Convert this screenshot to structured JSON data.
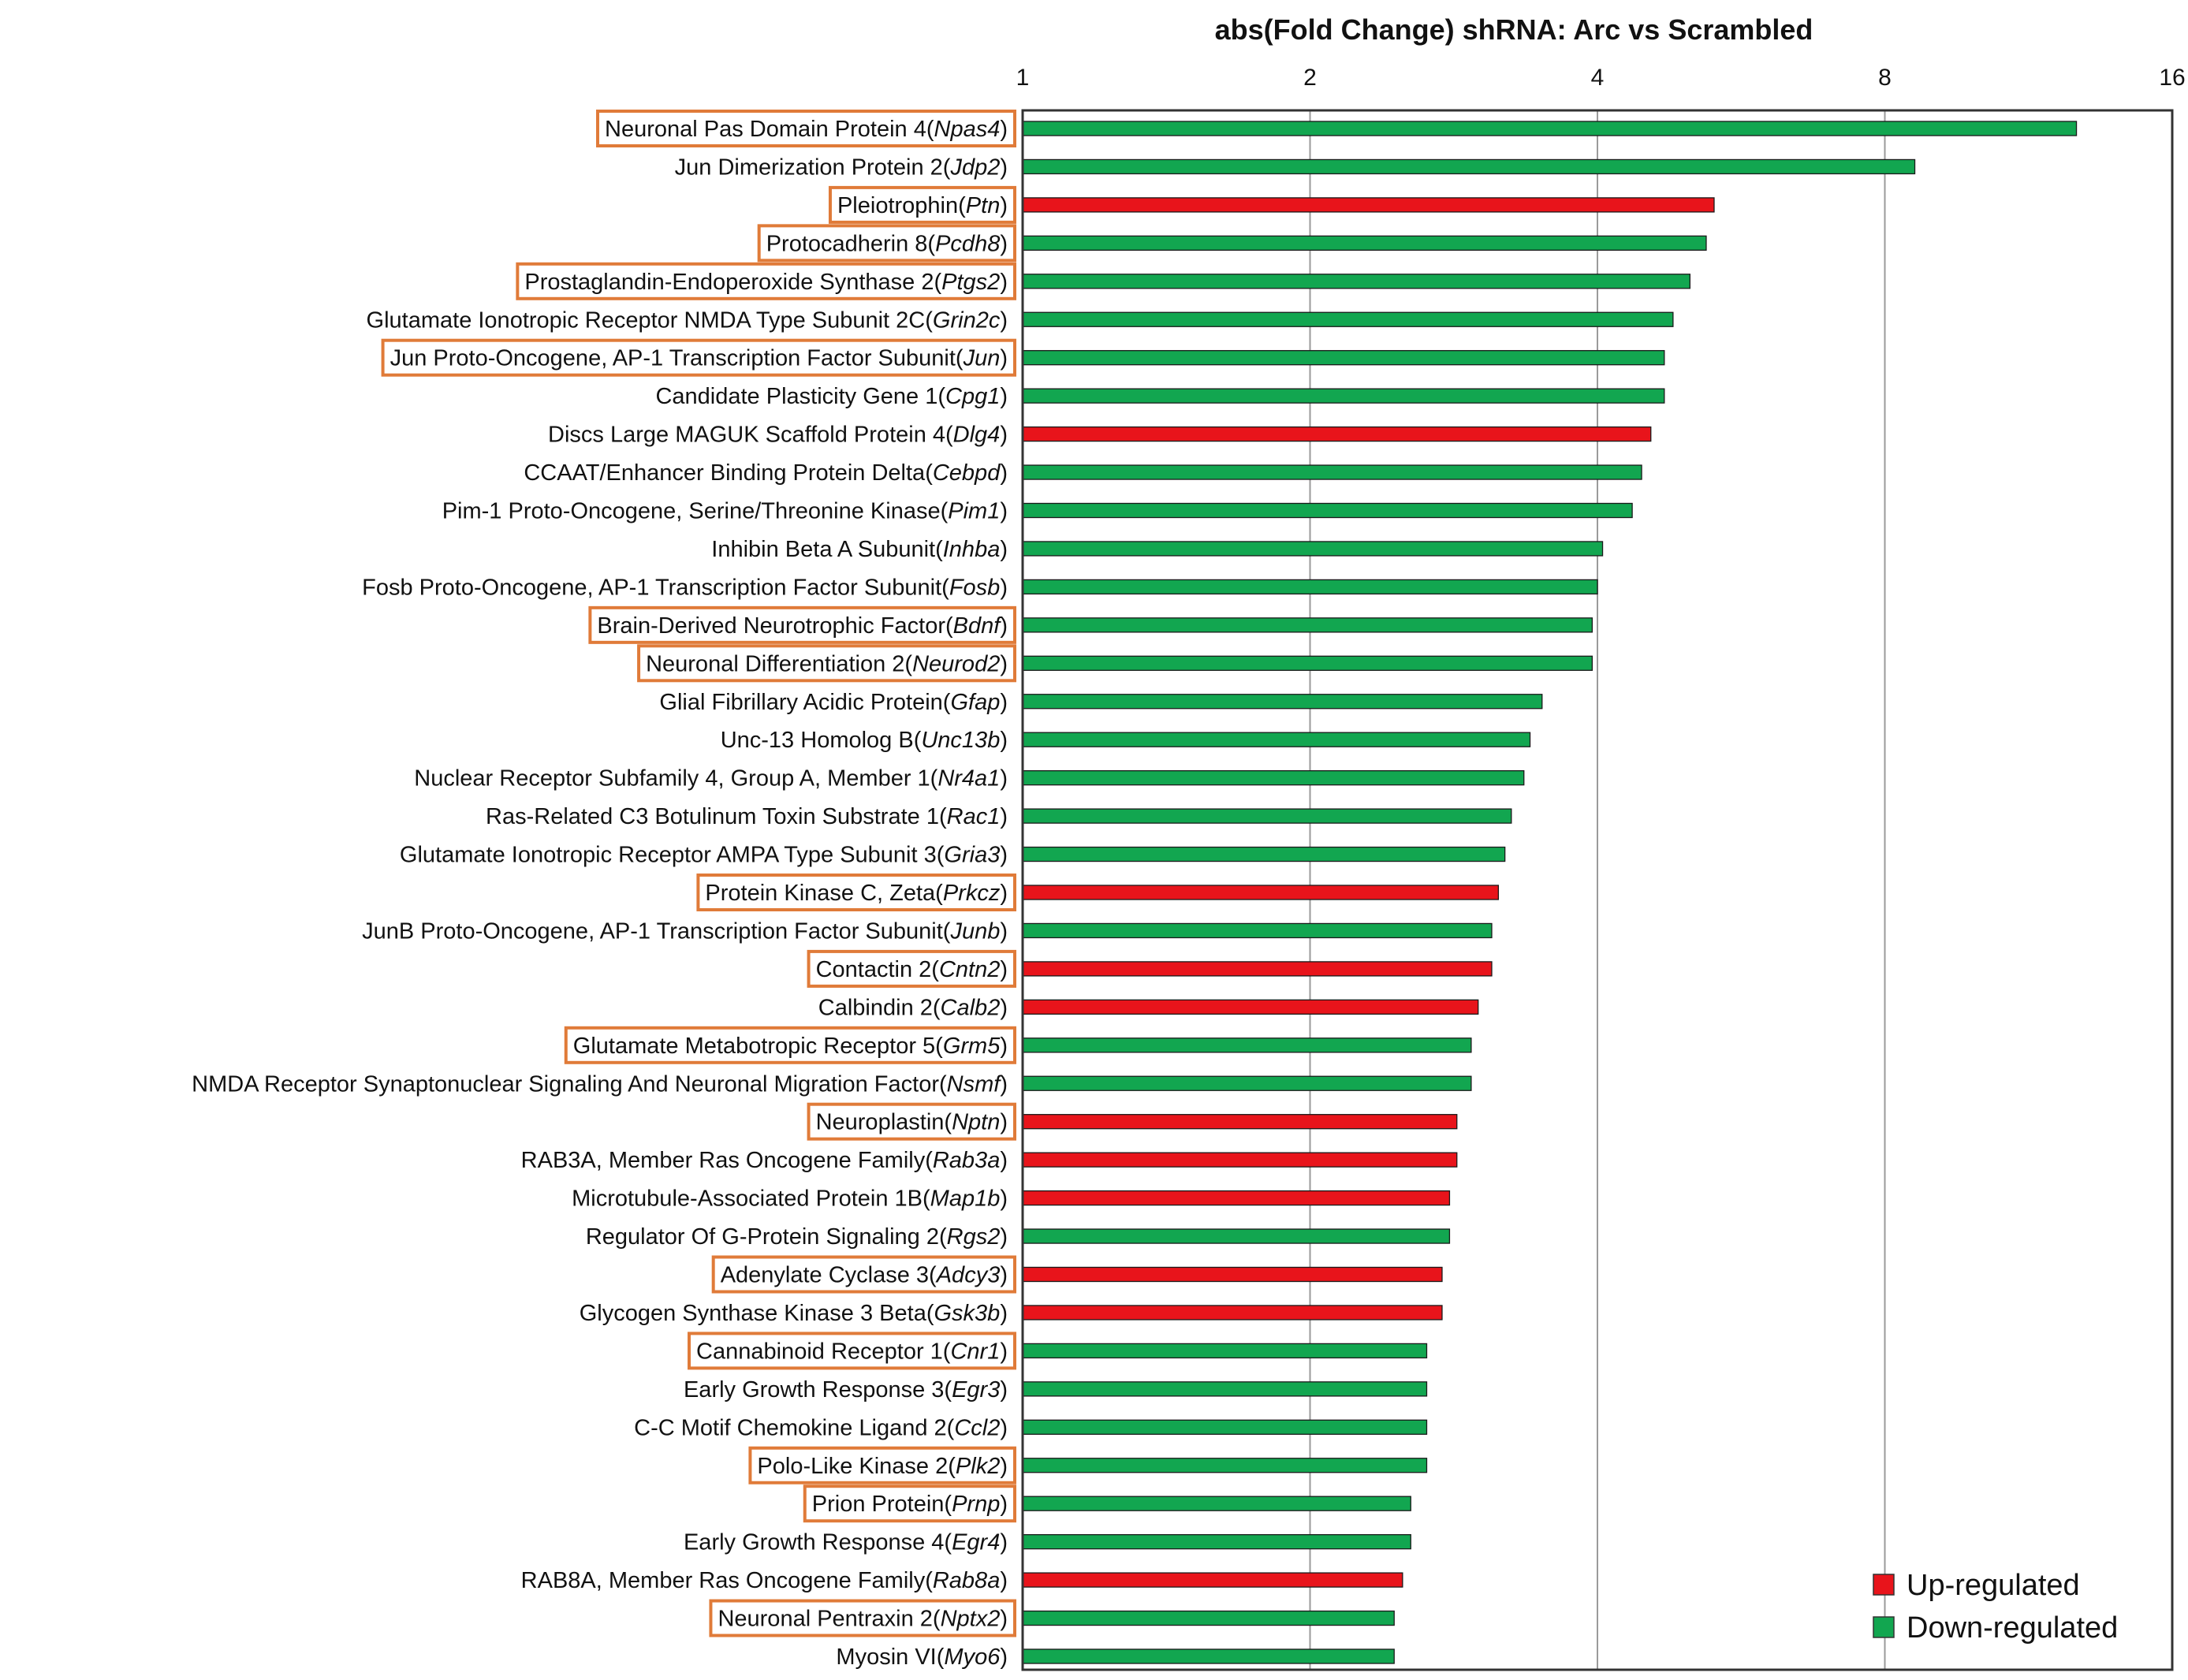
{
  "chart_data": {
    "type": "bar",
    "orientation": "horizontal",
    "title": "abs(Fold Change) shRNA: Arc vs Scrambled",
    "xscale": "log2",
    "xlim": [
      1,
      16
    ],
    "xticks": [
      "1",
      "2",
      "4",
      "8",
      "16"
    ],
    "grid": true,
    "legend_position": "bottom-right",
    "legend": [
      {
        "label": "Up-regulated",
        "color": "#e8141b"
      },
      {
        "label": "Down-regulated",
        "color": "#12a650"
      }
    ],
    "colors": {
      "up": "#e8141b",
      "down": "#12a650",
      "highlight": "#e07b39"
    },
    "genes": [
      {
        "name": "Neuronal Pas Domain Protein 4(",
        "symbol": "Npas4",
        "suffix": ")",
        "value": 12.7,
        "direction": "down",
        "highlighted": true
      },
      {
        "name": "Jun Dimerization Protein 2(",
        "symbol": "Jdp2",
        "suffix": ")",
        "value": 8.6,
        "direction": "down",
        "highlighted": false
      },
      {
        "name": "Pleiotrophin(",
        "symbol": "Ptn",
        "suffix": ")",
        "value": 5.3,
        "direction": "up",
        "highlighted": true
      },
      {
        "name": "Protocadherin 8(",
        "symbol": "Pcdh8",
        "suffix": ")",
        "value": 5.2,
        "direction": "down",
        "highlighted": true
      },
      {
        "name": "Prostaglandin-Endoperoxide Synthase 2(",
        "symbol": "Ptgs2",
        "suffix": ")",
        "value": 5.0,
        "direction": "down",
        "highlighted": true
      },
      {
        "name": "Glutamate Ionotropic Receptor NMDA Type Subunit 2C(",
        "symbol": "Grin2c",
        "suffix": ")",
        "value": 4.8,
        "direction": "down",
        "highlighted": false
      },
      {
        "name": "Jun Proto-Oncogene, AP-1 Transcription Factor Subunit(",
        "symbol": "Jun",
        "suffix": ")",
        "value": 4.7,
        "direction": "down",
        "highlighted": true
      },
      {
        "name": "Candidate Plasticity Gene 1(",
        "symbol": "Cpg1",
        "suffix": ")",
        "value": 4.7,
        "direction": "down",
        "highlighted": false
      },
      {
        "name": "Discs Large MAGUK Scaffold Protein 4(",
        "symbol": "Dlg4",
        "suffix": ")",
        "value": 4.55,
        "direction": "up",
        "highlighted": false
      },
      {
        "name": "CCAAT/Enhancer Binding Protein Delta(",
        "symbol": "Cebpd",
        "suffix": ")",
        "value": 4.45,
        "direction": "down",
        "highlighted": false
      },
      {
        "name": "Pim-1 Proto-Oncogene, Serine/Threonine Kinase(",
        "symbol": "Pim1",
        "suffix": ")",
        "value": 4.35,
        "direction": "down",
        "highlighted": false
      },
      {
        "name": "Inhibin Beta A Subunit(",
        "symbol": "Inhba",
        "suffix": ")",
        "value": 4.05,
        "direction": "down",
        "highlighted": false
      },
      {
        "name": "Fosb Proto-Oncogene, AP-1 Transcription Factor Subunit(",
        "symbol": "Fosb",
        "suffix": ")",
        "value": 4.0,
        "direction": "down",
        "highlighted": false
      },
      {
        "name": "Brain-Derived Neurotrophic Factor(",
        "symbol": "Bdnf",
        "suffix": ")",
        "value": 3.95,
        "direction": "down",
        "highlighted": true
      },
      {
        "name": "Neuronal Differentiation 2(",
        "symbol": "Neurod2",
        "suffix": ")",
        "value": 3.95,
        "direction": "down",
        "highlighted": true
      },
      {
        "name": "Glial Fibrillary Acidic Protein(",
        "symbol": "Gfap",
        "suffix": ")",
        "value": 3.5,
        "direction": "down",
        "highlighted": false
      },
      {
        "name": "Unc-13 Homolog B(",
        "symbol": "Unc13b",
        "suffix": ")",
        "value": 3.4,
        "direction": "down",
        "highlighted": false
      },
      {
        "name": "Nuclear Receptor Subfamily 4, Group A, Member 1(",
        "symbol": "Nr4a1",
        "suffix": ")",
        "value": 3.35,
        "direction": "down",
        "highlighted": false
      },
      {
        "name": "Ras-Related C3 Botulinum Toxin Substrate 1(",
        "symbol": "Rac1",
        "suffix": ")",
        "value": 3.25,
        "direction": "down",
        "highlighted": false
      },
      {
        "name": "Glutamate Ionotropic Receptor AMPA Type Subunit 3(",
        "symbol": "Gria3",
        "suffix": ")",
        "value": 3.2,
        "direction": "down",
        "highlighted": false
      },
      {
        "name": "Protein Kinase C, Zeta(",
        "symbol": "Prkcz",
        "suffix": ")",
        "value": 3.15,
        "direction": "up",
        "highlighted": true
      },
      {
        "name": "JunB Proto-Oncogene, AP-1 Transcription Factor Subunit(",
        "symbol": "Junb",
        "suffix": ")",
        "value": 3.1,
        "direction": "down",
        "highlighted": false
      },
      {
        "name": "Contactin 2(",
        "symbol": "Cntn2",
        "suffix": ")",
        "value": 3.1,
        "direction": "up",
        "highlighted": true
      },
      {
        "name": "Calbindin 2(",
        "symbol": "Calb2",
        "suffix": ")",
        "value": 3.0,
        "direction": "up",
        "highlighted": false
      },
      {
        "name": "Glutamate Metabotropic Receptor 5(",
        "symbol": "Grm5",
        "suffix": ")",
        "value": 2.95,
        "direction": "down",
        "highlighted": true
      },
      {
        "name": "NMDA Receptor Synaptonuclear Signaling And Neuronal Migration Factor(",
        "symbol": "Nsmf",
        "suffix": ")",
        "value": 2.95,
        "direction": "down",
        "highlighted": false
      },
      {
        "name": "Neuroplastin(",
        "symbol": "Nptn",
        "suffix": ")",
        "value": 2.85,
        "direction": "up",
        "highlighted": true
      },
      {
        "name": "RAB3A, Member Ras Oncogene Family(",
        "symbol": "Rab3a",
        "suffix": ")",
        "value": 2.85,
        "direction": "up",
        "highlighted": false
      },
      {
        "name": "Microtubule-Associated Protein 1B(",
        "symbol": "Map1b",
        "suffix": ")",
        "value": 2.8,
        "direction": "up",
        "highlighted": false
      },
      {
        "name": "Regulator Of G-Protein Signaling 2(",
        "symbol": "Rgs2",
        "suffix": ")",
        "value": 2.8,
        "direction": "down",
        "highlighted": false
      },
      {
        "name": "Adenylate Cyclase 3(",
        "symbol": "Adcy3",
        "suffix": ")",
        "value": 2.75,
        "direction": "up",
        "highlighted": true
      },
      {
        "name": "Glycogen Synthase Kinase 3 Beta(",
        "symbol": "Gsk3b",
        "suffix": ")",
        "value": 2.75,
        "direction": "up",
        "highlighted": false
      },
      {
        "name": "Cannabinoid Receptor 1(",
        "symbol": "Cnr1",
        "suffix": ")",
        "value": 2.65,
        "direction": "down",
        "highlighted": true
      },
      {
        "name": "Early Growth Response 3(",
        "symbol": "Egr3",
        "suffix": ")",
        "value": 2.65,
        "direction": "down",
        "highlighted": false
      },
      {
        "name": "C-C Motif Chemokine Ligand 2(",
        "symbol": "Ccl2",
        "suffix": ")",
        "value": 2.65,
        "direction": "down",
        "highlighted": false
      },
      {
        "name": "Polo-Like Kinase 2(",
        "symbol": "Plk2",
        "suffix": ")",
        "value": 2.65,
        "direction": "down",
        "highlighted": true
      },
      {
        "name": "Prion Protein(",
        "symbol": "Prnp",
        "suffix": ")",
        "value": 2.55,
        "direction": "down",
        "highlighted": true
      },
      {
        "name": "Early Growth Response 4(",
        "symbol": "Egr4",
        "suffix": ")",
        "value": 2.55,
        "direction": "down",
        "highlighted": false
      },
      {
        "name": "RAB8A, Member Ras Oncogene Family(",
        "symbol": "Rab8a",
        "suffix": ")",
        "value": 2.5,
        "direction": "up",
        "highlighted": false
      },
      {
        "name": "Neuronal Pentraxin 2(",
        "symbol": "Nptx2",
        "suffix": ")",
        "value": 2.45,
        "direction": "down",
        "highlighted": true
      },
      {
        "name": "Myosin VI(",
        "symbol": "Myo6",
        "suffix": ")",
        "value": 2.45,
        "direction": "down",
        "highlighted": false
      }
    ]
  }
}
